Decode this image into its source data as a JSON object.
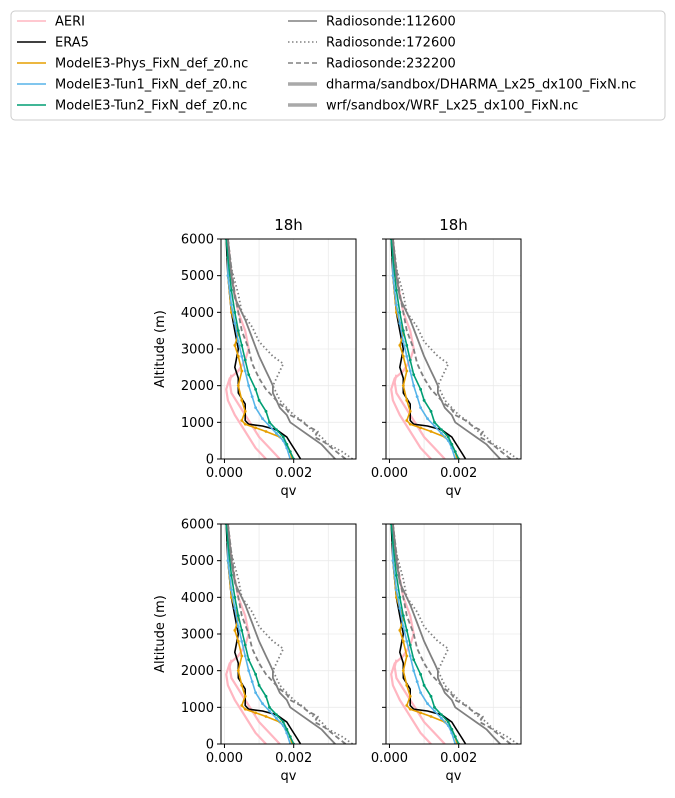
{
  "legend": {
    "placement": "top",
    "entries": [
      {
        "label": "AERI",
        "color": "#ffb6c1",
        "style": "solid",
        "width": 1.5
      },
      {
        "label": "ERA5",
        "color": "#000000",
        "style": "solid",
        "width": 1.5
      },
      {
        "label": "ModelE3-Phys_FixN_def_z0.nc",
        "color": "#e69f00",
        "style": "solid",
        "width": 1.5
      },
      {
        "label": "ModelE3-Tun1_FixN_def_z0.nc",
        "color": "#56b4e9",
        "style": "solid",
        "width": 1.5
      },
      {
        "label": "ModelE3-Tun2_FixN_def_z0.nc",
        "color": "#009e73",
        "style": "solid",
        "width": 1.5
      },
      {
        "label": "Radiosonde:112600",
        "color": "#808080",
        "style": "solid",
        "width": 1.5
      },
      {
        "label": "Radiosonde:172600",
        "color": "#808080",
        "style": "dotted",
        "width": 1.5
      },
      {
        "label": "Radiosonde:232200",
        "color": "#808080",
        "style": "dashed",
        "width": 1.5
      },
      {
        "label": "dharma/sandbox/DHARMA_Lx25_dx100_FixN.nc",
        "color": "#a9a9a9",
        "style": "solid",
        "width": 3.5
      },
      {
        "label": "wrf/sandbox/WRF_Lx25_dx100_FixN.nc",
        "color": "#a9a9a9",
        "style": "solid",
        "width": 3.5
      }
    ]
  },
  "chart_data": {
    "type": "line",
    "layout": "2x2 subplots, shared y-axis per row",
    "subplot_titles": [
      "18h",
      "18h",
      "",
      ""
    ],
    "xlabel": "qv",
    "ylabel": "Altitude (m)",
    "xlim": [
      -0.0001,
      0.0038
    ],
    "ylim": [
      0,
      6000
    ],
    "xticks": [
      "0.000",
      "0.002"
    ],
    "yticks": [
      "0",
      "1000",
      "2000",
      "3000",
      "4000",
      "5000",
      "6000"
    ],
    "grid": true,
    "series": [
      {
        "name": "AERI",
        "points": [
          [
            0.0012,
            0
          ],
          [
            0.0009,
            300
          ],
          [
            0.0007,
            600
          ],
          [
            0.0005,
            900
          ],
          [
            0.0003,
            1200
          ],
          [
            0.0001,
            1600
          ],
          [
            5e-05,
            1900
          ],
          [
            0.00015,
            2200
          ],
          [
            0.0004,
            2400
          ],
          [
            0.0006,
            2700
          ],
          [
            0.0007,
            3000
          ],
          [
            0.0006,
            3500
          ],
          [
            0.0004,
            4000
          ],
          [
            0.0002,
            5000
          ],
          [
            0.0001,
            6000
          ]
        ]
      },
      {
        "name": "AERI",
        "points": [
          [
            0.0016,
            0
          ],
          [
            0.0013,
            300
          ],
          [
            0.001,
            600
          ],
          [
            0.0008,
            900
          ],
          [
            0.0006,
            1200
          ],
          [
            0.0004,
            1500
          ],
          [
            0.0002,
            1800
          ],
          [
            0.00015,
            2100
          ],
          [
            0.0002,
            2300
          ]
        ]
      },
      {
        "name": "ERA5",
        "points": [
          [
            0.0022,
            0
          ],
          [
            0.0021,
            150
          ],
          [
            0.002,
            300
          ],
          [
            0.0019,
            450
          ],
          [
            0.0018,
            600
          ],
          [
            0.0015,
            800
          ],
          [
            0.0011,
            900
          ],
          [
            0.0007,
            950
          ],
          [
            0.0006,
            1050
          ],
          [
            0.0006,
            1500
          ],
          [
            0.0004,
            1800
          ],
          [
            0.0004,
            2200
          ],
          [
            0.0003,
            2500
          ],
          [
            0.0004,
            3000
          ],
          [
            0.0003,
            3500
          ],
          [
            0.0002,
            4000
          ],
          [
            0.0001,
            5000
          ],
          [
            5e-05,
            6000
          ]
        ]
      },
      {
        "name": "ModelE3-Phys_FixN_def_z0.nc",
        "points": [
          [
            0.00195,
            0
          ],
          [
            0.0019,
            200
          ],
          [
            0.0018,
            400
          ],
          [
            0.0016,
            600
          ],
          [
            0.0012,
            750
          ],
          [
            0.0009,
            850
          ],
          [
            0.0006,
            950
          ],
          [
            0.0005,
            1050
          ],
          [
            0.0006,
            1300
          ],
          [
            0.0005,
            1600
          ],
          [
            0.0004,
            2000
          ],
          [
            0.0005,
            2400
          ],
          [
            0.0004,
            2800
          ],
          [
            0.0003,
            3100
          ],
          [
            0.0004,
            3400
          ],
          [
            0.0002,
            4000
          ],
          [
            0.0001,
            5000
          ],
          [
            0.0001,
            6000
          ]
        ]
      },
      {
        "name": "ModelE3-Tun1_FixN_def_z0.nc",
        "points": [
          [
            0.0019,
            0
          ],
          [
            0.0018,
            300
          ],
          [
            0.0017,
            500
          ],
          [
            0.0015,
            700
          ],
          [
            0.0013,
            900
          ],
          [
            0.0011,
            1100
          ],
          [
            0.0009,
            1400
          ],
          [
            0.0008,
            1700
          ],
          [
            0.0007,
            2000
          ],
          [
            0.0006,
            2400
          ],
          [
            0.0005,
            2800
          ],
          [
            0.0004,
            3200
          ],
          [
            0.0003,
            3700
          ],
          [
            0.0002,
            4200
          ],
          [
            0.0001,
            5000
          ],
          [
            0.0001,
            6000
          ]
        ]
      },
      {
        "name": "ModelE3-Tun2_FixN_def_z0.nc",
        "points": [
          [
            0.002,
            0
          ],
          [
            0.0019,
            200
          ],
          [
            0.0018,
            400
          ],
          [
            0.0017,
            600
          ],
          [
            0.0015,
            800
          ],
          [
            0.0013,
            1000
          ],
          [
            0.0012,
            1300
          ],
          [
            0.001,
            1600
          ],
          [
            0.0009,
            1900
          ],
          [
            0.0007,
            2300
          ],
          [
            0.0006,
            2700
          ],
          [
            0.0005,
            3100
          ],
          [
            0.0004,
            3500
          ],
          [
            0.0003,
            4000
          ],
          [
            0.0002,
            4600
          ],
          [
            0.0001,
            5500
          ],
          [
            5e-05,
            6000
          ]
        ]
      },
      {
        "name": "Radiosonde:112600",
        "points": [
          [
            0.0032,
            0
          ],
          [
            0.003,
            200
          ],
          [
            0.0028,
            400
          ],
          [
            0.0025,
            600
          ],
          [
            0.0022,
            800
          ],
          [
            0.0019,
            1000
          ],
          [
            0.0018,
            1200
          ],
          [
            0.0016,
            1400
          ],
          [
            0.0015,
            1600
          ],
          [
            0.0014,
            1800
          ],
          [
            0.0014,
            2000
          ],
          [
            0.0013,
            2200
          ],
          [
            0.0012,
            2400
          ],
          [
            0.001,
            2800
          ],
          [
            0.0008,
            3300
          ],
          [
            0.0006,
            3800
          ],
          [
            0.0003,
            4400
          ],
          [
            0.0002,
            5000
          ],
          [
            0.0001,
            6000
          ]
        ]
      },
      {
        "name": "Radiosonde:172600",
        "points": [
          [
            0.0037,
            0
          ],
          [
            0.0034,
            200
          ],
          [
            0.003,
            400
          ],
          [
            0.0028,
            600
          ],
          [
            0.0025,
            800
          ],
          [
            0.0023,
            1000
          ],
          [
            0.002,
            1200
          ],
          [
            0.0018,
            1400
          ],
          [
            0.0016,
            1600
          ],
          [
            0.0015,
            1800
          ],
          [
            0.0014,
            2000
          ],
          [
            0.0015,
            2200
          ],
          [
            0.0016,
            2400
          ],
          [
            0.0017,
            2600
          ],
          [
            0.0014,
            2800
          ],
          [
            0.001,
            3200
          ],
          [
            0.0008,
            3600
          ],
          [
            0.0005,
            4000
          ],
          [
            0.0004,
            4500
          ],
          [
            0.0002,
            5200
          ],
          [
            0.0001,
            6000
          ]
        ]
      },
      {
        "name": "Radiosonde:232200",
        "points": [
          [
            0.0035,
            0
          ],
          [
            0.0033,
            150
          ],
          [
            0.0031,
            300
          ],
          [
            0.0029,
            450
          ],
          [
            0.0026,
            600
          ],
          [
            0.0027,
            750
          ],
          [
            0.0024,
            900
          ],
          [
            0.0022,
            1050
          ],
          [
            0.0019,
            1200
          ],
          [
            0.0018,
            1350
          ],
          [
            0.0016,
            1500
          ],
          [
            0.0014,
            1700
          ],
          [
            0.0012,
            1900
          ],
          [
            0.001,
            2200
          ],
          [
            0.0008,
            2600
          ],
          [
            0.0007,
            3000
          ],
          [
            0.0005,
            3500
          ],
          [
            0.0004,
            4000
          ],
          [
            0.0003,
            4500
          ],
          [
            0.0002,
            5200
          ],
          [
            0.0001,
            6000
          ]
        ]
      }
    ]
  }
}
